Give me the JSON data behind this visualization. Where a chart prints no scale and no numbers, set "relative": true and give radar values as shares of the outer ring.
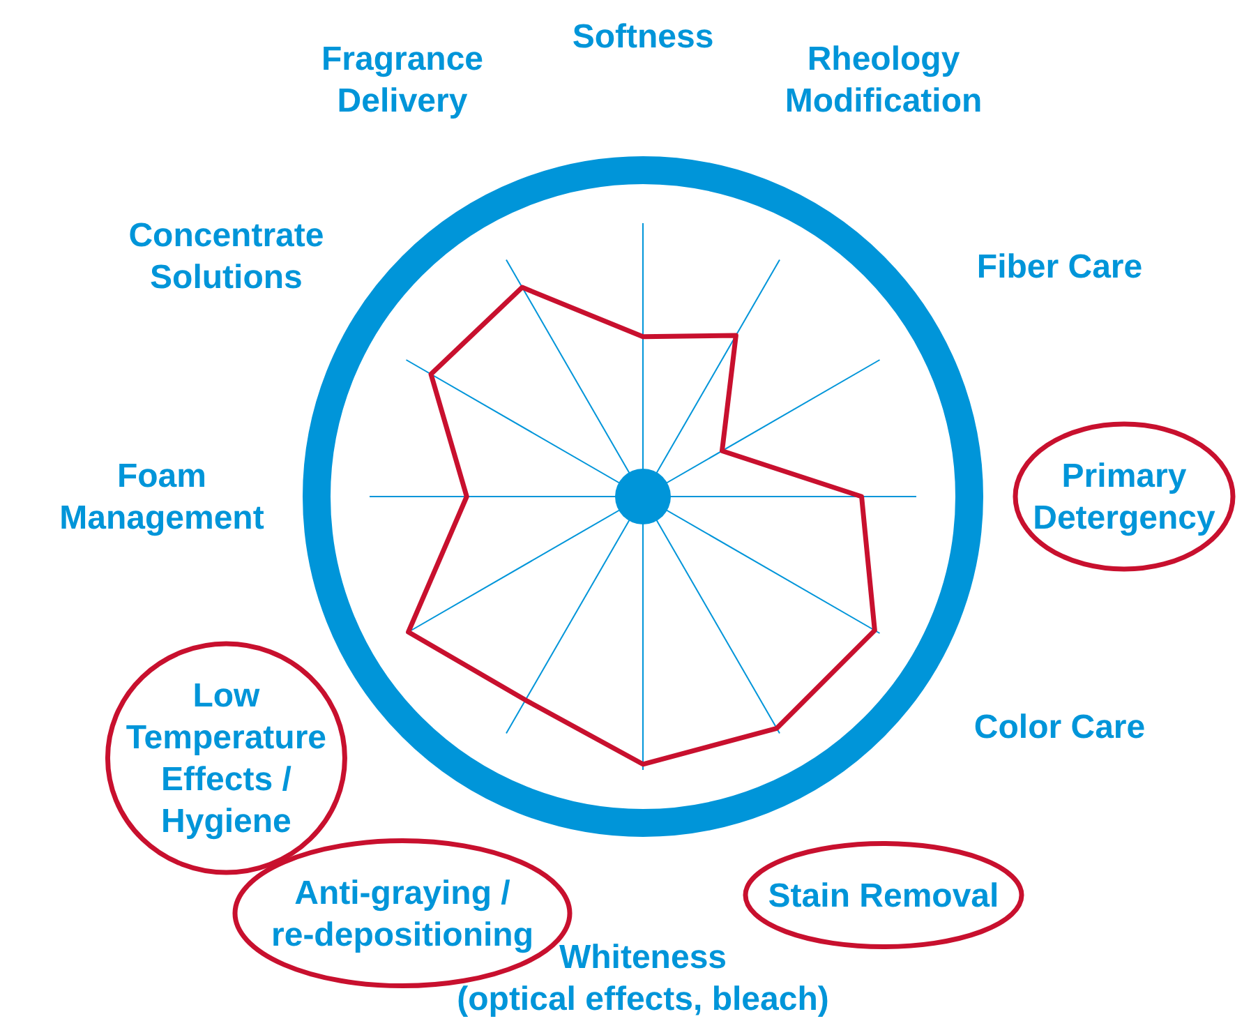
{
  "chart_data": {
    "type": "radar",
    "relative": true,
    "categories": [
      "Softness",
      "Rheology\nModification",
      "Fiber Care",
      "Primary\nDetergency",
      "Color Care",
      "Stain Removal",
      "Whiteness\n(optical effects, bleach)",
      "Anti-graying /\nre-depositioning",
      "Low\nTemperature\nEffects /\nHygiene",
      "Foam\nManagement",
      "Concentrate\nSolutions",
      "Fragrance\nDelivery"
    ],
    "series": [
      {
        "color": "#c8102e",
        "values": [
          0.49,
          0.57,
          0.28,
          0.67,
          0.82,
          0.82,
          0.82,
          0.72,
          0.83,
          0.54,
          0.75,
          0.74
        ]
      }
    ]
  }
}
